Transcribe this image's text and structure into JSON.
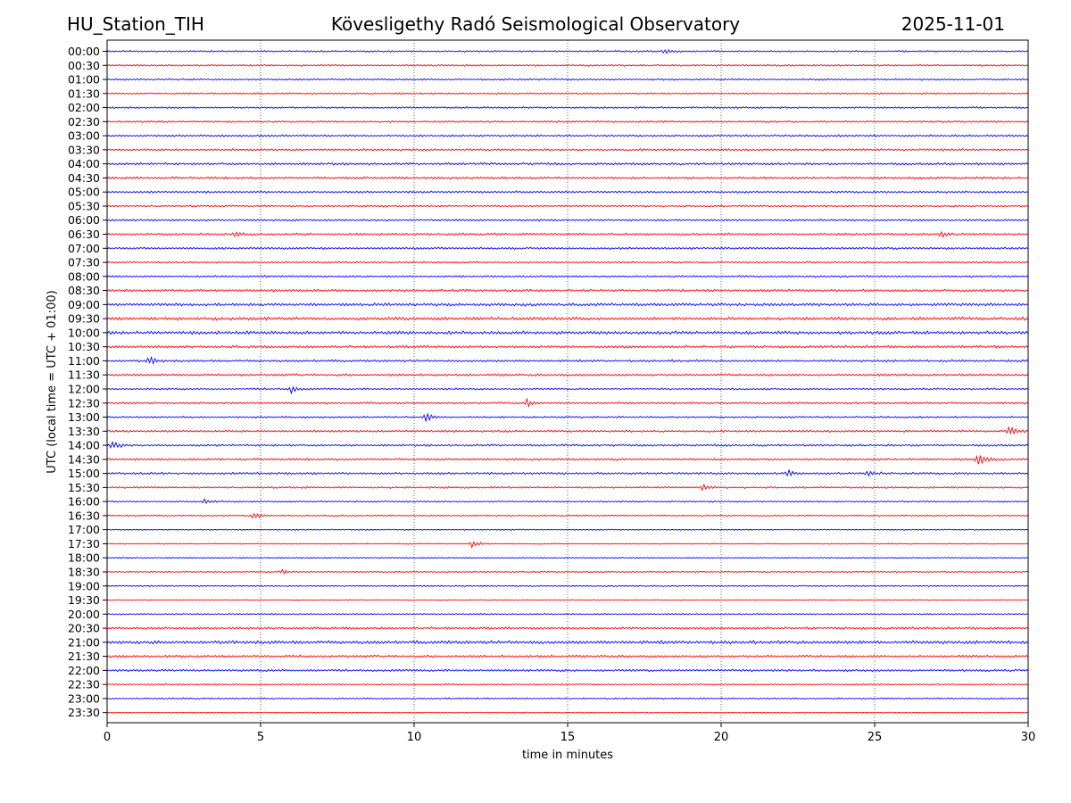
{
  "header": {
    "station": "HU_Station_TIH",
    "observatory": "Kövesligethy Radó Seismological Observatory",
    "date": "2025-11-01"
  },
  "chart_data": {
    "type": "line",
    "title": "Kövesligethy Radó Seismological Observatory",
    "xlabel": "time in minutes",
    "ylabel": "UTC (local time = UTC + 01:00)",
    "xlim": [
      0,
      30
    ],
    "x_ticks": [
      "0",
      "5",
      "10",
      "15",
      "20",
      "25",
      "30"
    ],
    "grid": "vertical dotted lines at x = 5, 10, 15, 20, 25",
    "colors": [
      "#0000ff",
      "#ff0000"
    ],
    "rows": [
      {
        "label": "00:00",
        "amp": 1.0,
        "events": [
          {
            "t": 18.2,
            "a": 3
          }
        ]
      },
      {
        "label": "00:30",
        "amp": 1.1,
        "events": []
      },
      {
        "label": "01:00",
        "amp": 1.0,
        "events": []
      },
      {
        "label": "01:30",
        "amp": 1.0,
        "events": []
      },
      {
        "label": "02:00",
        "amp": 1.1,
        "events": []
      },
      {
        "label": "02:30",
        "amp": 1.2,
        "events": []
      },
      {
        "label": "03:00",
        "amp": 1.3,
        "events": []
      },
      {
        "label": "03:30",
        "amp": 1.3,
        "events": []
      },
      {
        "label": "04:00",
        "amp": 1.5,
        "events": []
      },
      {
        "label": "04:30",
        "amp": 1.5,
        "events": []
      },
      {
        "label": "05:00",
        "amp": 1.3,
        "events": []
      },
      {
        "label": "05:30",
        "amp": 1.1,
        "events": []
      },
      {
        "label": "06:00",
        "amp": 1.2,
        "events": []
      },
      {
        "label": "06:30",
        "amp": 1.4,
        "events": [
          {
            "t": 4.2,
            "a": 2.5
          },
          {
            "t": 27.2,
            "a": 2.5
          }
        ]
      },
      {
        "label": "07:00",
        "amp": 1.3,
        "events": []
      },
      {
        "label": "07:30",
        "amp": 1.1,
        "events": []
      },
      {
        "label": "08:00",
        "amp": 1.2,
        "events": []
      },
      {
        "label": "08:30",
        "amp": 1.5,
        "events": []
      },
      {
        "label": "09:00",
        "amp": 1.8,
        "events": []
      },
      {
        "label": "09:30",
        "amp": 2.0,
        "events": []
      },
      {
        "label": "10:00",
        "amp": 2.0,
        "events": []
      },
      {
        "label": "10:30",
        "amp": 1.6,
        "events": []
      },
      {
        "label": "11:00",
        "amp": 1.4,
        "events": [
          {
            "t": 1.4,
            "a": 4
          }
        ]
      },
      {
        "label": "11:30",
        "amp": 1.4,
        "events": []
      },
      {
        "label": "12:00",
        "amp": 1.1,
        "events": [
          {
            "t": 6.0,
            "a": 4
          }
        ]
      },
      {
        "label": "12:30",
        "amp": 1.3,
        "events": [
          {
            "t": 13.7,
            "a": 5
          }
        ]
      },
      {
        "label": "13:00",
        "amp": 1.2,
        "events": [
          {
            "t": 10.4,
            "a": 4.5
          }
        ]
      },
      {
        "label": "13:30",
        "amp": 1.3,
        "events": [
          {
            "t": 29.4,
            "a": 5
          }
        ]
      },
      {
        "label": "14:00",
        "amp": 1.3,
        "events": [
          {
            "t": 0.2,
            "a": 4.5
          }
        ]
      },
      {
        "label": "14:30",
        "amp": 1.4,
        "events": [
          {
            "t": 28.4,
            "a": 8
          }
        ]
      },
      {
        "label": "15:00",
        "amp": 1.4,
        "events": [
          {
            "t": 22.2,
            "a": 3
          },
          {
            "t": 24.8,
            "a": 3
          }
        ]
      },
      {
        "label": "15:30",
        "amp": 1.1,
        "events": [
          {
            "t": 19.4,
            "a": 3
          }
        ]
      },
      {
        "label": "16:00",
        "amp": 0.9,
        "events": [
          {
            "t": 3.2,
            "a": 2.5
          }
        ]
      },
      {
        "label": "16:30",
        "amp": 0.8,
        "events": [
          {
            "t": 4.8,
            "a": 4
          }
        ]
      },
      {
        "label": "17:00",
        "amp": 0.7,
        "events": []
      },
      {
        "label": "17:30",
        "amp": 0.7,
        "events": [
          {
            "t": 11.9,
            "a": 5
          }
        ]
      },
      {
        "label": "18:00",
        "amp": 0.7,
        "events": []
      },
      {
        "label": "18:30",
        "amp": 0.8,
        "events": [
          {
            "t": 5.7,
            "a": 2.5
          }
        ]
      },
      {
        "label": "19:00",
        "amp": 0.8,
        "events": []
      },
      {
        "label": "19:30",
        "amp": 0.7,
        "events": []
      },
      {
        "label": "20:00",
        "amp": 0.8,
        "events": []
      },
      {
        "label": "20:30",
        "amp": 1.5,
        "events": []
      },
      {
        "label": "21:00",
        "amp": 2.0,
        "events": []
      },
      {
        "label": "21:30",
        "amp": 1.5,
        "events": []
      },
      {
        "label": "22:00",
        "amp": 1.4,
        "events": []
      },
      {
        "label": "22:30",
        "amp": 0.9,
        "events": []
      },
      {
        "label": "23:00",
        "amp": 0.9,
        "events": []
      },
      {
        "label": "23:30",
        "amp": 0.7,
        "events": []
      }
    ]
  }
}
